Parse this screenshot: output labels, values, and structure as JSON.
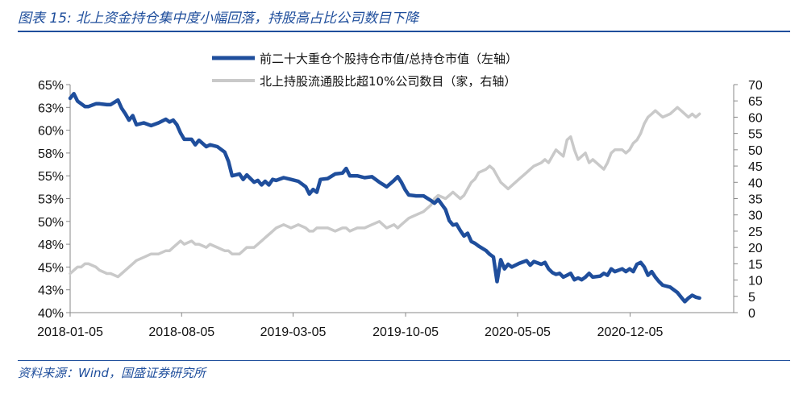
{
  "figure": {
    "title": "图表 15:  北上资金持仓集中度小幅回落，持股高占比公司数目下降",
    "source": "资料来源：Wind，国盛证券研究所"
  },
  "colors": {
    "series1": "#1f4e9c",
    "series2": "#c9c9c9",
    "accent": "#1f4e9c"
  },
  "chart_data": {
    "type": "line",
    "title": "",
    "x_tick_labels": [
      "2018-01-05",
      "2018-08-05",
      "2019-03-05",
      "2019-10-05",
      "2020-05-05",
      "2020-12-05"
    ],
    "x_range": [
      "2018-01-05",
      "2021-06-20"
    ],
    "y_left": {
      "ticks": [
        "65%",
        "63%",
        "60%",
        "58%",
        "55%",
        "53%",
        "50%",
        "48%",
        "45%",
        "43%",
        "40%"
      ],
      "range": [
        40,
        65
      ],
      "unit": "%"
    },
    "y_right": {
      "ticks": [
        "70",
        "65",
        "60",
        "55",
        "50",
        "45",
        "40",
        "35",
        "30",
        "25",
        "20",
        "15",
        "10",
        "5",
        "0"
      ],
      "range": [
        0,
        70
      ]
    },
    "legend": {
      "position": "top-center"
    },
    "grid": false,
    "series": [
      {
        "name": "前二十大重仓个股持仓市值/总持仓市值（左轴）",
        "axis": "left",
        "color": "#1f4e9c",
        "points": [
          [
            "2018-01-05",
            63.5
          ],
          [
            "2018-01-12",
            64.0
          ],
          [
            "2018-01-19",
            63.2
          ],
          [
            "2018-01-26",
            62.9
          ],
          [
            "2018-02-02",
            62.6
          ],
          [
            "2018-02-09",
            62.6
          ],
          [
            "2018-02-23",
            62.9
          ],
          [
            "2018-03-02",
            62.9
          ],
          [
            "2018-03-16",
            62.8
          ],
          [
            "2018-03-23",
            62.8
          ],
          [
            "2018-04-06",
            63.3
          ],
          [
            "2018-04-13",
            62.4
          ],
          [
            "2018-04-20",
            61.8
          ],
          [
            "2018-04-27",
            61.1
          ],
          [
            "2018-05-04",
            61.6
          ],
          [
            "2018-05-11",
            60.6
          ],
          [
            "2018-05-25",
            60.8
          ],
          [
            "2018-06-08",
            60.5
          ],
          [
            "2018-06-22",
            60.8
          ],
          [
            "2018-07-06",
            61.2
          ],
          [
            "2018-07-13",
            60.9
          ],
          [
            "2018-07-20",
            61.1
          ],
          [
            "2018-07-27",
            60.6
          ],
          [
            "2018-08-03",
            59.7
          ],
          [
            "2018-08-10",
            59.0
          ],
          [
            "2018-08-24",
            59.0
          ],
          [
            "2018-08-31",
            58.4
          ],
          [
            "2018-09-07",
            58.9
          ],
          [
            "2018-09-21",
            58.2
          ],
          [
            "2018-09-28",
            58.4
          ],
          [
            "2018-10-12",
            58.2
          ],
          [
            "2018-10-26",
            57.6
          ],
          [
            "2018-11-02",
            56.6
          ],
          [
            "2018-11-09",
            55.0
          ],
          [
            "2018-11-23",
            55.2
          ],
          [
            "2018-11-30",
            54.6
          ],
          [
            "2018-12-07",
            55.1
          ],
          [
            "2018-12-21",
            54.3
          ],
          [
            "2018-12-28",
            54.5
          ],
          [
            "2019-01-04",
            54.0
          ],
          [
            "2019-01-11",
            54.4
          ],
          [
            "2019-01-18",
            54.0
          ],
          [
            "2019-01-25",
            54.6
          ],
          [
            "2019-02-01",
            54.5
          ],
          [
            "2019-02-15",
            54.8
          ],
          [
            "2019-03-01",
            54.6
          ],
          [
            "2019-03-15",
            54.4
          ],
          [
            "2019-03-29",
            53.8
          ],
          [
            "2019-04-05",
            53.0
          ],
          [
            "2019-04-12",
            53.5
          ],
          [
            "2019-04-19",
            53.2
          ],
          [
            "2019-04-26",
            54.6
          ],
          [
            "2019-05-10",
            54.7
          ],
          [
            "2019-05-24",
            55.2
          ],
          [
            "2019-06-07",
            55.3
          ],
          [
            "2019-06-14",
            55.8
          ],
          [
            "2019-06-21",
            55.0
          ],
          [
            "2019-07-05",
            55.0
          ],
          [
            "2019-07-19",
            54.8
          ],
          [
            "2019-08-02",
            54.9
          ],
          [
            "2019-08-16",
            54.3
          ],
          [
            "2019-08-30",
            53.8
          ],
          [
            "2019-09-13",
            54.5
          ],
          [
            "2019-09-20",
            54.9
          ],
          [
            "2019-09-27",
            54.3
          ],
          [
            "2019-10-04",
            53.5
          ],
          [
            "2019-10-11",
            52.9
          ],
          [
            "2019-10-25",
            52.8
          ],
          [
            "2019-11-08",
            52.8
          ],
          [
            "2019-11-22",
            52.3
          ],
          [
            "2019-11-29",
            52.0
          ],
          [
            "2019-12-06",
            52.4
          ],
          [
            "2019-12-20",
            51.3
          ],
          [
            "2019-12-27",
            50.1
          ],
          [
            "2020-01-03",
            49.6
          ],
          [
            "2020-01-10",
            49.7
          ],
          [
            "2020-01-17",
            49.0
          ],
          [
            "2020-01-24",
            48.4
          ],
          [
            "2020-01-31",
            48.7
          ],
          [
            "2020-02-07",
            47.8
          ],
          [
            "2020-02-14",
            47.6
          ],
          [
            "2020-02-21",
            47.3
          ],
          [
            "2020-03-06",
            46.8
          ],
          [
            "2020-03-13",
            46.4
          ],
          [
            "2020-03-20",
            46.1
          ],
          [
            "2020-03-27",
            43.4
          ],
          [
            "2020-04-03",
            45.8
          ],
          [
            "2020-04-10",
            44.8
          ],
          [
            "2020-04-17",
            45.3
          ],
          [
            "2020-04-24",
            45.0
          ],
          [
            "2020-05-08",
            45.4
          ],
          [
            "2020-05-22",
            45.7
          ],
          [
            "2020-05-29",
            45.2
          ],
          [
            "2020-06-05",
            45.6
          ],
          [
            "2020-06-19",
            45.3
          ],
          [
            "2020-06-26",
            45.5
          ],
          [
            "2020-07-03",
            44.8
          ],
          [
            "2020-07-10",
            44.4
          ],
          [
            "2020-07-17",
            44.2
          ],
          [
            "2020-07-24",
            44.3
          ],
          [
            "2020-07-31",
            43.9
          ],
          [
            "2020-08-07",
            44.1
          ],
          [
            "2020-08-14",
            44.3
          ],
          [
            "2020-08-21",
            43.6
          ],
          [
            "2020-08-28",
            43.8
          ],
          [
            "2020-09-04",
            43.6
          ],
          [
            "2020-09-11",
            43.9
          ],
          [
            "2020-09-18",
            44.3
          ],
          [
            "2020-09-25",
            43.9
          ],
          [
            "2020-10-09",
            44.0
          ],
          [
            "2020-10-16",
            44.3
          ],
          [
            "2020-10-23",
            44.1
          ],
          [
            "2020-10-30",
            44.8
          ],
          [
            "2020-11-06",
            44.5
          ],
          [
            "2020-11-20",
            44.8
          ],
          [
            "2020-11-27",
            44.5
          ],
          [
            "2020-12-04",
            44.8
          ],
          [
            "2020-12-11",
            44.5
          ],
          [
            "2020-12-18",
            45.3
          ],
          [
            "2020-12-25",
            45.5
          ],
          [
            "2021-01-01",
            45.0
          ],
          [
            "2021-01-08",
            44.1
          ],
          [
            "2021-01-15",
            44.5
          ],
          [
            "2021-01-22",
            43.9
          ],
          [
            "2021-01-29",
            43.4
          ],
          [
            "2021-02-05",
            43.0
          ],
          [
            "2021-02-19",
            42.8
          ],
          [
            "2021-02-26",
            42.5
          ],
          [
            "2021-03-05",
            42.2
          ],
          [
            "2021-03-12",
            41.7
          ],
          [
            "2021-03-19",
            41.2
          ],
          [
            "2021-03-26",
            41.6
          ],
          [
            "2021-04-02",
            41.9
          ],
          [
            "2021-04-09",
            41.7
          ],
          [
            "2021-04-16",
            41.6
          ]
        ]
      },
      {
        "name": "北上持股流通股比超10%公司数目（家，右轴）",
        "axis": "right",
        "color": "#c9c9c9",
        "points": [
          [
            "2018-01-05",
            12
          ],
          [
            "2018-01-12",
            13
          ],
          [
            "2018-01-19",
            14
          ],
          [
            "2018-01-26",
            14
          ],
          [
            "2018-02-02",
            15
          ],
          [
            "2018-02-09",
            15
          ],
          [
            "2018-02-23",
            14
          ],
          [
            "2018-03-02",
            13
          ],
          [
            "2018-03-16",
            12
          ],
          [
            "2018-03-23",
            12
          ],
          [
            "2018-04-06",
            11
          ],
          [
            "2018-04-13",
            12
          ],
          [
            "2018-04-20",
            13
          ],
          [
            "2018-04-27",
            14
          ],
          [
            "2018-05-04",
            15
          ],
          [
            "2018-05-11",
            16
          ],
          [
            "2018-05-25",
            17
          ],
          [
            "2018-06-08",
            18
          ],
          [
            "2018-06-22",
            18
          ],
          [
            "2018-07-06",
            19
          ],
          [
            "2018-07-13",
            19
          ],
          [
            "2018-07-20",
            20
          ],
          [
            "2018-07-27",
            21
          ],
          [
            "2018-08-03",
            22
          ],
          [
            "2018-08-10",
            21
          ],
          [
            "2018-08-24",
            22
          ],
          [
            "2018-08-31",
            21
          ],
          [
            "2018-09-07",
            21
          ],
          [
            "2018-09-21",
            20
          ],
          [
            "2018-09-28",
            21
          ],
          [
            "2018-10-12",
            20
          ],
          [
            "2018-10-26",
            19
          ],
          [
            "2018-11-02",
            19
          ],
          [
            "2018-11-09",
            18
          ],
          [
            "2018-11-23",
            18
          ],
          [
            "2018-11-30",
            19
          ],
          [
            "2018-12-07",
            20
          ],
          [
            "2018-12-21",
            20
          ],
          [
            "2018-12-28",
            21
          ],
          [
            "2019-01-04",
            22
          ],
          [
            "2019-01-11",
            23
          ],
          [
            "2019-01-18",
            24
          ],
          [
            "2019-01-25",
            25
          ],
          [
            "2019-02-01",
            26
          ],
          [
            "2019-02-15",
            27
          ],
          [
            "2019-03-01",
            26
          ],
          [
            "2019-03-15",
            27
          ],
          [
            "2019-03-29",
            26
          ],
          [
            "2019-04-05",
            25
          ],
          [
            "2019-04-12",
            25
          ],
          [
            "2019-04-19",
            26
          ],
          [
            "2019-04-26",
            26
          ],
          [
            "2019-05-10",
            26
          ],
          [
            "2019-05-24",
            25
          ],
          [
            "2019-06-07",
            26
          ],
          [
            "2019-06-14",
            26
          ],
          [
            "2019-06-21",
            25
          ],
          [
            "2019-07-05",
            26
          ],
          [
            "2019-07-19",
            26
          ],
          [
            "2019-08-02",
            27
          ],
          [
            "2019-08-16",
            28
          ],
          [
            "2019-08-30",
            26
          ],
          [
            "2019-09-13",
            27
          ],
          [
            "2019-09-20",
            26
          ],
          [
            "2019-09-27",
            27
          ],
          [
            "2019-10-04",
            28
          ],
          [
            "2019-10-11",
            29
          ],
          [
            "2019-10-25",
            30
          ],
          [
            "2019-11-08",
            31
          ],
          [
            "2019-11-22",
            33
          ],
          [
            "2019-11-29",
            35
          ],
          [
            "2019-12-06",
            36
          ],
          [
            "2019-12-20",
            35
          ],
          [
            "2019-12-27",
            36
          ],
          [
            "2020-01-03",
            37
          ],
          [
            "2020-01-10",
            36
          ],
          [
            "2020-01-17",
            35
          ],
          [
            "2020-01-24",
            36
          ],
          [
            "2020-01-31",
            38
          ],
          [
            "2020-02-07",
            40
          ],
          [
            "2020-02-14",
            41
          ],
          [
            "2020-02-21",
            43
          ],
          [
            "2020-03-06",
            44
          ],
          [
            "2020-03-13",
            45
          ],
          [
            "2020-03-20",
            44
          ],
          [
            "2020-03-27",
            42
          ],
          [
            "2020-04-03",
            40
          ],
          [
            "2020-04-10",
            39
          ],
          [
            "2020-04-17",
            38
          ],
          [
            "2020-04-24",
            39
          ],
          [
            "2020-05-08",
            41
          ],
          [
            "2020-05-22",
            43
          ],
          [
            "2020-05-29",
            44
          ],
          [
            "2020-06-05",
            45
          ],
          [
            "2020-06-19",
            46
          ],
          [
            "2020-06-26",
            47
          ],
          [
            "2020-07-03",
            46
          ],
          [
            "2020-07-10",
            48
          ],
          [
            "2020-07-17",
            50
          ],
          [
            "2020-07-24",
            49
          ],
          [
            "2020-07-31",
            48
          ],
          [
            "2020-08-07",
            53
          ],
          [
            "2020-08-14",
            54
          ],
          [
            "2020-08-21",
            50
          ],
          [
            "2020-08-28",
            47
          ],
          [
            "2020-09-04",
            48
          ],
          [
            "2020-09-11",
            49
          ],
          [
            "2020-09-18",
            46
          ],
          [
            "2020-09-25",
            47
          ],
          [
            "2020-10-09",
            45
          ],
          [
            "2020-10-16",
            44
          ],
          [
            "2020-10-23",
            46
          ],
          [
            "2020-10-30",
            49
          ],
          [
            "2020-11-06",
            50
          ],
          [
            "2020-11-20",
            50
          ],
          [
            "2020-11-27",
            49
          ],
          [
            "2020-12-04",
            50
          ],
          [
            "2020-12-11",
            52
          ],
          [
            "2020-12-18",
            53
          ],
          [
            "2020-12-25",
            55
          ],
          [
            "2021-01-01",
            58
          ],
          [
            "2021-01-08",
            60
          ],
          [
            "2021-01-15",
            61
          ],
          [
            "2021-01-22",
            62
          ],
          [
            "2021-01-29",
            61
          ],
          [
            "2021-02-05",
            60
          ],
          [
            "2021-02-19",
            61
          ],
          [
            "2021-02-26",
            62
          ],
          [
            "2021-03-05",
            63
          ],
          [
            "2021-03-12",
            62
          ],
          [
            "2021-03-19",
            61
          ],
          [
            "2021-03-26",
            60
          ],
          [
            "2021-04-02",
            61
          ],
          [
            "2021-04-09",
            60
          ],
          [
            "2021-04-16",
            61
          ]
        ]
      }
    ]
  }
}
